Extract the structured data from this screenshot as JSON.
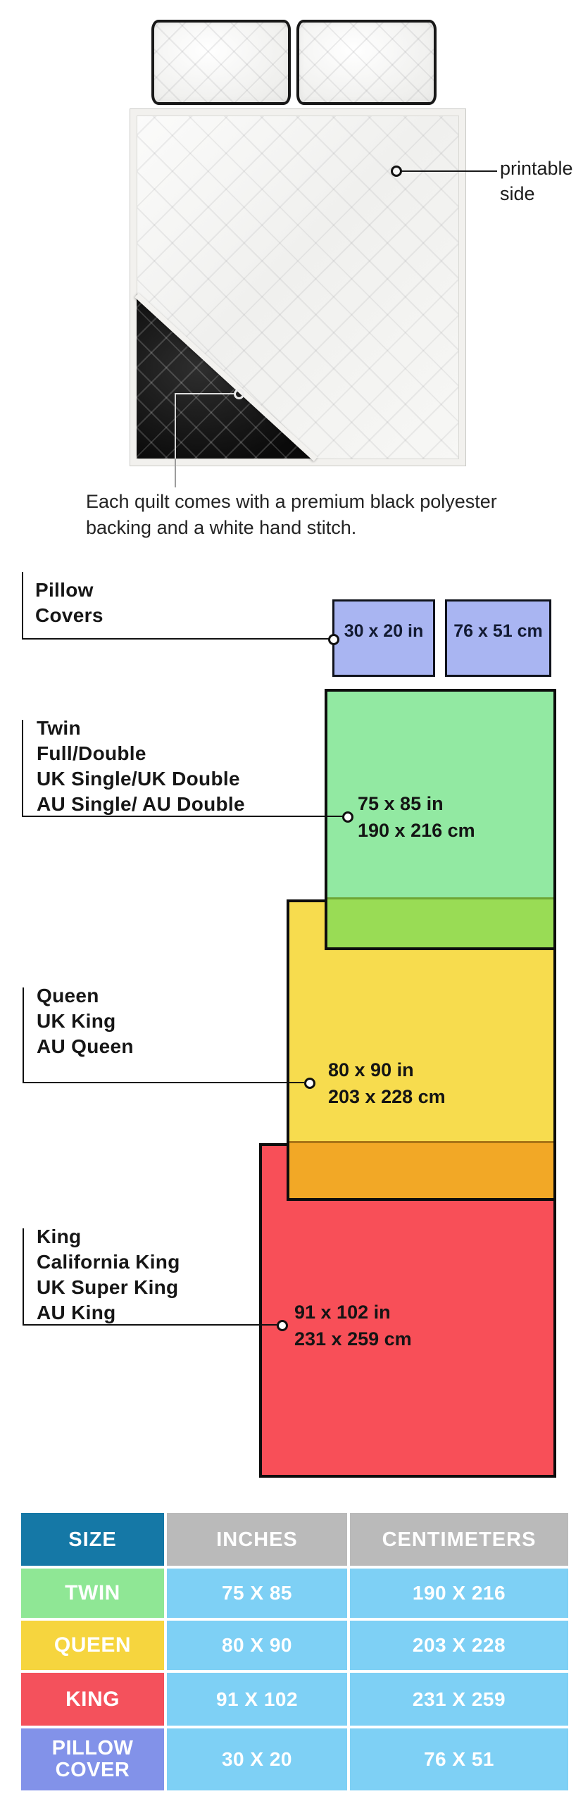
{
  "illustration": {
    "printable_label": "printable\nside",
    "caption": "Each quilt comes with a premium black polyester\nbacking and a white hand stitch."
  },
  "diagram": {
    "pillow_covers": {
      "label": "Pillow\nCovers",
      "size_in": "30 x 20 in",
      "size_cm": "76 x 51 cm"
    },
    "twin": {
      "names": [
        "Twin",
        "Full/Double",
        "UK Single/UK Double",
        "AU Single/ AU Double"
      ],
      "size": "75 x 85 in\n190 x 216 cm"
    },
    "queen": {
      "names": [
        "Queen",
        "UK King",
        "AU Queen"
      ],
      "size": "80 x 90 in\n203 x 228 cm"
    },
    "king": {
      "names": [
        "King",
        "California King",
        "UK Super King",
        "AU King"
      ],
      "size": "91 x 102 in\n231 x 259 cm"
    }
  },
  "table": {
    "headers": [
      "SIZE",
      "INCHES",
      "CENTIMETERS"
    ],
    "rows": [
      {
        "label": "TWIN",
        "inches": "75 X 85",
        "centimeters": "190 X 216"
      },
      {
        "label": "QUEEN",
        "inches": "80 X 90",
        "centimeters": "203 X 228"
      },
      {
        "label": "KING",
        "inches": "91 X 102",
        "centimeters": "231 X 259"
      },
      {
        "label": "PILLOW\nCOVER",
        "inches": "30 X 20",
        "centimeters": "76 X 51"
      }
    ]
  },
  "colors": {
    "pillow_cover_blue": "#a9b5f2",
    "twin_green": "#92e9a2",
    "twin_queen_overlap_lime": "#99dc55",
    "queen_yellow": "#f7dc4e",
    "queen_king_overlap_orange": "#f2a826",
    "king_red": "#f84f58",
    "quilt_backing_black": "#151515",
    "table_header_teal": "#1578a6",
    "table_header_gray": "#bababa",
    "table_value_blue": "#7ed0f5",
    "table_twin_green": "#8fe795",
    "table_queen_yellow": "#f6d53e",
    "table_king_red": "#f4515c",
    "table_pillow_blue": "#8292e9"
  }
}
